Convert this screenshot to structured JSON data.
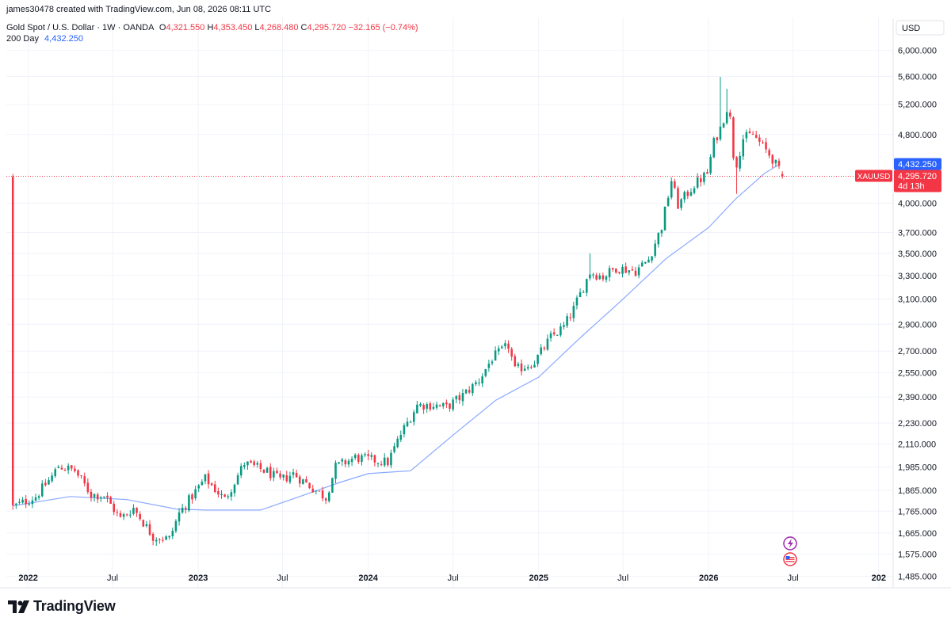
{
  "header": {
    "credit": "james30478 created with TradingView.com, Jun 08, 2026 08:11 UTC",
    "symbol": "Gold Spot / U.S. Dollar · 1W · OANDA",
    "o_label": "O",
    "o_value": "4,321.550",
    "h_label": "H",
    "h_value": "4,353.450",
    "l_label": "L",
    "l_value": "4,268.480",
    "c_label": "C",
    "c_value": "4,295.720",
    "change": "−32.165 (−0.74%)",
    "ma_label": "200 Day",
    "ma_value": "4,432.250"
  },
  "axis": {
    "currency": "USD",
    "price_ticks": [
      6000,
      5600,
      5200,
      4800,
      4000,
      3700,
      3500,
      3300,
      3100,
      2900,
      2700,
      2550,
      2390,
      2230,
      2110,
      1985,
      1865,
      1765,
      1665,
      1575,
      1485
    ],
    "price_tick_labels": [
      "6,000.000",
      "5,600.000",
      "5,200.000",
      "4,800.000",
      "4,000.000",
      "3,700.000",
      "3,500.000",
      "3,300.000",
      "3,100.000",
      "2,900.000",
      "2,700.000",
      "2,550.000",
      "2,390.000",
      "2,230.000",
      "2,110.000",
      "1,985.000",
      "1,865.000",
      "1,765.000",
      "1,665.000",
      "1,575.000",
      "1,485.000"
    ],
    "time_ticks": [
      {
        "label": "2022",
        "date": "2022-01-01",
        "bold": true
      },
      {
        "label": "Jul",
        "date": "2022-07-01",
        "bold": false
      },
      {
        "label": "2023",
        "date": "2023-01-01",
        "bold": true
      },
      {
        "label": "Jul",
        "date": "2023-07-01",
        "bold": false
      },
      {
        "label": "2024",
        "date": "2024-01-01",
        "bold": true
      },
      {
        "label": "Jul",
        "date": "2024-07-01",
        "bold": false
      },
      {
        "label": "2025",
        "date": "2025-01-01",
        "bold": true
      },
      {
        "label": "Jul",
        "date": "2025-07-01",
        "bold": false
      },
      {
        "label": "2026",
        "date": "2026-01-01",
        "bold": true
      },
      {
        "label": "Jul",
        "date": "2026-07-01",
        "bold": false
      },
      {
        "label": "202",
        "date": "2027-01-01",
        "bold": true
      }
    ],
    "ma_badge": "4,432.250",
    "price_badge": "4,295.720",
    "countdown": "4d 13h",
    "symbol_tag": "XAUUSD"
  },
  "brand": {
    "logo_text": "TradingView"
  },
  "colors": {
    "up": "#089981",
    "down": "#f23645",
    "ma": "#2962ff",
    "grid": "#f0f3fa",
    "axis_text": "#131722"
  },
  "chart_data": {
    "type": "candlestick",
    "interval": "1W",
    "scale": "log",
    "ylim": [
      1440,
      6150
    ],
    "xlim": [
      "2021-11-15",
      "2027-02-01"
    ],
    "series": [
      {
        "name": "XAUUSD",
        "anchors": [
          [
            "2021-11-29",
            1785
          ],
          [
            "2021-12-20",
            1805
          ],
          [
            "2022-01-17",
            1835
          ],
          [
            "2022-02-21",
            1935
          ],
          [
            "2022-03-07",
            1990
          ],
          [
            "2022-04-11",
            1965
          ],
          [
            "2022-05-16",
            1845
          ],
          [
            "2022-06-13",
            1840
          ],
          [
            "2022-07-18",
            1730
          ],
          [
            "2022-08-15",
            1780
          ],
          [
            "2022-09-26",
            1650
          ],
          [
            "2022-10-31",
            1640
          ],
          [
            "2022-11-21",
            1755
          ],
          [
            "2023-01-16",
            1925
          ],
          [
            "2023-02-27",
            1820
          ],
          [
            "2023-04-10",
            2005
          ],
          [
            "2023-05-29",
            1960
          ],
          [
            "2023-06-26",
            1915
          ],
          [
            "2023-07-24",
            1950
          ],
          [
            "2023-08-21",
            1900
          ],
          [
            "2023-10-02",
            1830
          ],
          [
            "2023-10-23",
            1985
          ],
          [
            "2023-12-04",
            2035
          ],
          [
            "2024-01-15",
            2020
          ],
          [
            "2024-02-12",
            2010
          ],
          [
            "2024-03-11",
            2165
          ],
          [
            "2024-04-15",
            2340
          ],
          [
            "2024-05-20",
            2340
          ],
          [
            "2024-06-17",
            2325
          ],
          [
            "2024-07-22",
            2400
          ],
          [
            "2024-08-26",
            2500
          ],
          [
            "2024-09-23",
            2650
          ],
          [
            "2024-10-28",
            2740
          ],
          [
            "2024-11-11",
            2565
          ],
          [
            "2024-12-23",
            2625
          ],
          [
            "2025-01-27",
            2800
          ],
          [
            "2025-02-24",
            2880
          ],
          [
            "2025-03-17",
            3020
          ],
          [
            "2025-04-21",
            3330
          ],
          [
            "2025-05-19",
            3290
          ],
          [
            "2025-06-16",
            3370
          ],
          [
            "2025-07-28",
            3340
          ],
          [
            "2025-08-25",
            3445
          ],
          [
            "2025-09-22",
            3760
          ],
          [
            "2025-10-13",
            4250
          ],
          [
            "2025-10-27",
            3980
          ],
          [
            "2025-12-01",
            4200
          ],
          [
            "2025-12-29",
            4330
          ],
          [
            "2026-01-12",
            4700
          ],
          [
            "2026-01-26",
            4880
          ],
          [
            "2026-02-09",
            5150
          ],
          [
            "2026-02-16",
            5000
          ],
          [
            "2026-02-23",
            4550
          ],
          [
            "2026-03-02",
            4450
          ],
          [
            "2026-03-16",
            4750
          ],
          [
            "2026-04-06",
            4800
          ],
          [
            "2026-04-27",
            4650
          ],
          [
            "2026-05-18",
            4500
          ],
          [
            "2026-06-08",
            4295.72
          ]
        ],
        "notable_wicks": [
          {
            "date": "2025-04-21",
            "high": 3500
          },
          {
            "date": "2026-01-26",
            "high": 5595
          },
          {
            "date": "2026-02-09",
            "high": 5420
          },
          {
            "date": "2026-03-02",
            "low": 4100
          }
        ],
        "last_bar": {
          "date": "2026-06-08",
          "open": 4321.55,
          "high": 4353.45,
          "low": 4268.48,
          "close": 4295.72
        }
      },
      {
        "name": "200 Day",
        "type": "line",
        "points": [
          [
            "2021-11-29",
            1790
          ],
          [
            "2022-04-01",
            1835
          ],
          [
            "2022-08-01",
            1820
          ],
          [
            "2022-11-15",
            1775
          ],
          [
            "2023-01-15",
            1770
          ],
          [
            "2023-05-15",
            1770
          ],
          [
            "2023-08-01",
            1830
          ],
          [
            "2023-11-01",
            1905
          ],
          [
            "2024-01-01",
            1950
          ],
          [
            "2024-04-01",
            1965
          ],
          [
            "2024-07-01",
            2160
          ],
          [
            "2024-10-01",
            2370
          ],
          [
            "2025-01-01",
            2520
          ],
          [
            "2025-04-01",
            2800
          ],
          [
            "2025-07-01",
            3100
          ],
          [
            "2025-10-01",
            3450
          ],
          [
            "2026-01-01",
            3750
          ],
          [
            "2026-03-01",
            4050
          ],
          [
            "2026-05-01",
            4330
          ],
          [
            "2026-06-01",
            4432.25
          ]
        ]
      }
    ]
  }
}
